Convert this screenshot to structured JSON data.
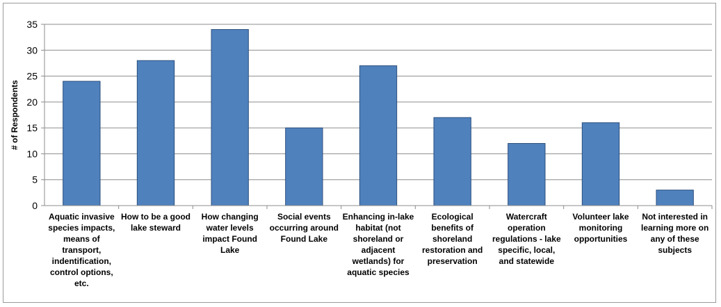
{
  "chart_data": {
    "type": "bar",
    "title": "",
    "xlabel": "",
    "ylabel": "# of Respondents",
    "ylim": [
      0,
      35
    ],
    "yticks": [
      0,
      5,
      10,
      15,
      20,
      25,
      30,
      35
    ],
    "grid": true,
    "legend": "none",
    "bar_color": "#4f81bd",
    "bar_edge_color": "#2b4f7e",
    "categories": [
      "Aquatic invasive species impacts, means of transport, indentification, control options, etc.",
      "How to be a good lake steward",
      "How changing water levels impact Found Lake",
      "Social events occurring around Found Lake",
      "Enhancing in-lake habitat (not shoreland or adjacent wetlands) for aquatic species",
      "Ecological benefits of shoreland restoration and preservation",
      "Watercraft operation regulations - lake specific, local, and statewide",
      "Volunteer lake monitoring opportunities",
      "Not interested in learning more on any of these subjects"
    ],
    "category_lines": [
      [
        "Aquatic invasive",
        "species impacts,",
        "means of",
        "transport,",
        "indentification,",
        "control options,",
        "etc."
      ],
      [
        "How to be a good",
        "lake steward"
      ],
      [
        "How changing",
        "water levels",
        "impact Found",
        "Lake"
      ],
      [
        "Social events",
        "occurring around",
        "Found Lake"
      ],
      [
        "Enhancing in-lake",
        "habitat (not",
        "shoreland or",
        "adjacent",
        "wetlands) for",
        "aquatic species"
      ],
      [
        "Ecological",
        "benefits of",
        "shoreland",
        "restoration and",
        "preservation"
      ],
      [
        "Watercraft",
        "operation",
        "regulations - lake",
        "specific, local,",
        "and statewide"
      ],
      [
        "Volunteer lake",
        "monitoring",
        "opportunities"
      ],
      [
        "Not interested in",
        "learning more on",
        "any of these",
        "subjects"
      ]
    ],
    "values": [
      24,
      28,
      34,
      15,
      27,
      17,
      12,
      16,
      3
    ]
  }
}
